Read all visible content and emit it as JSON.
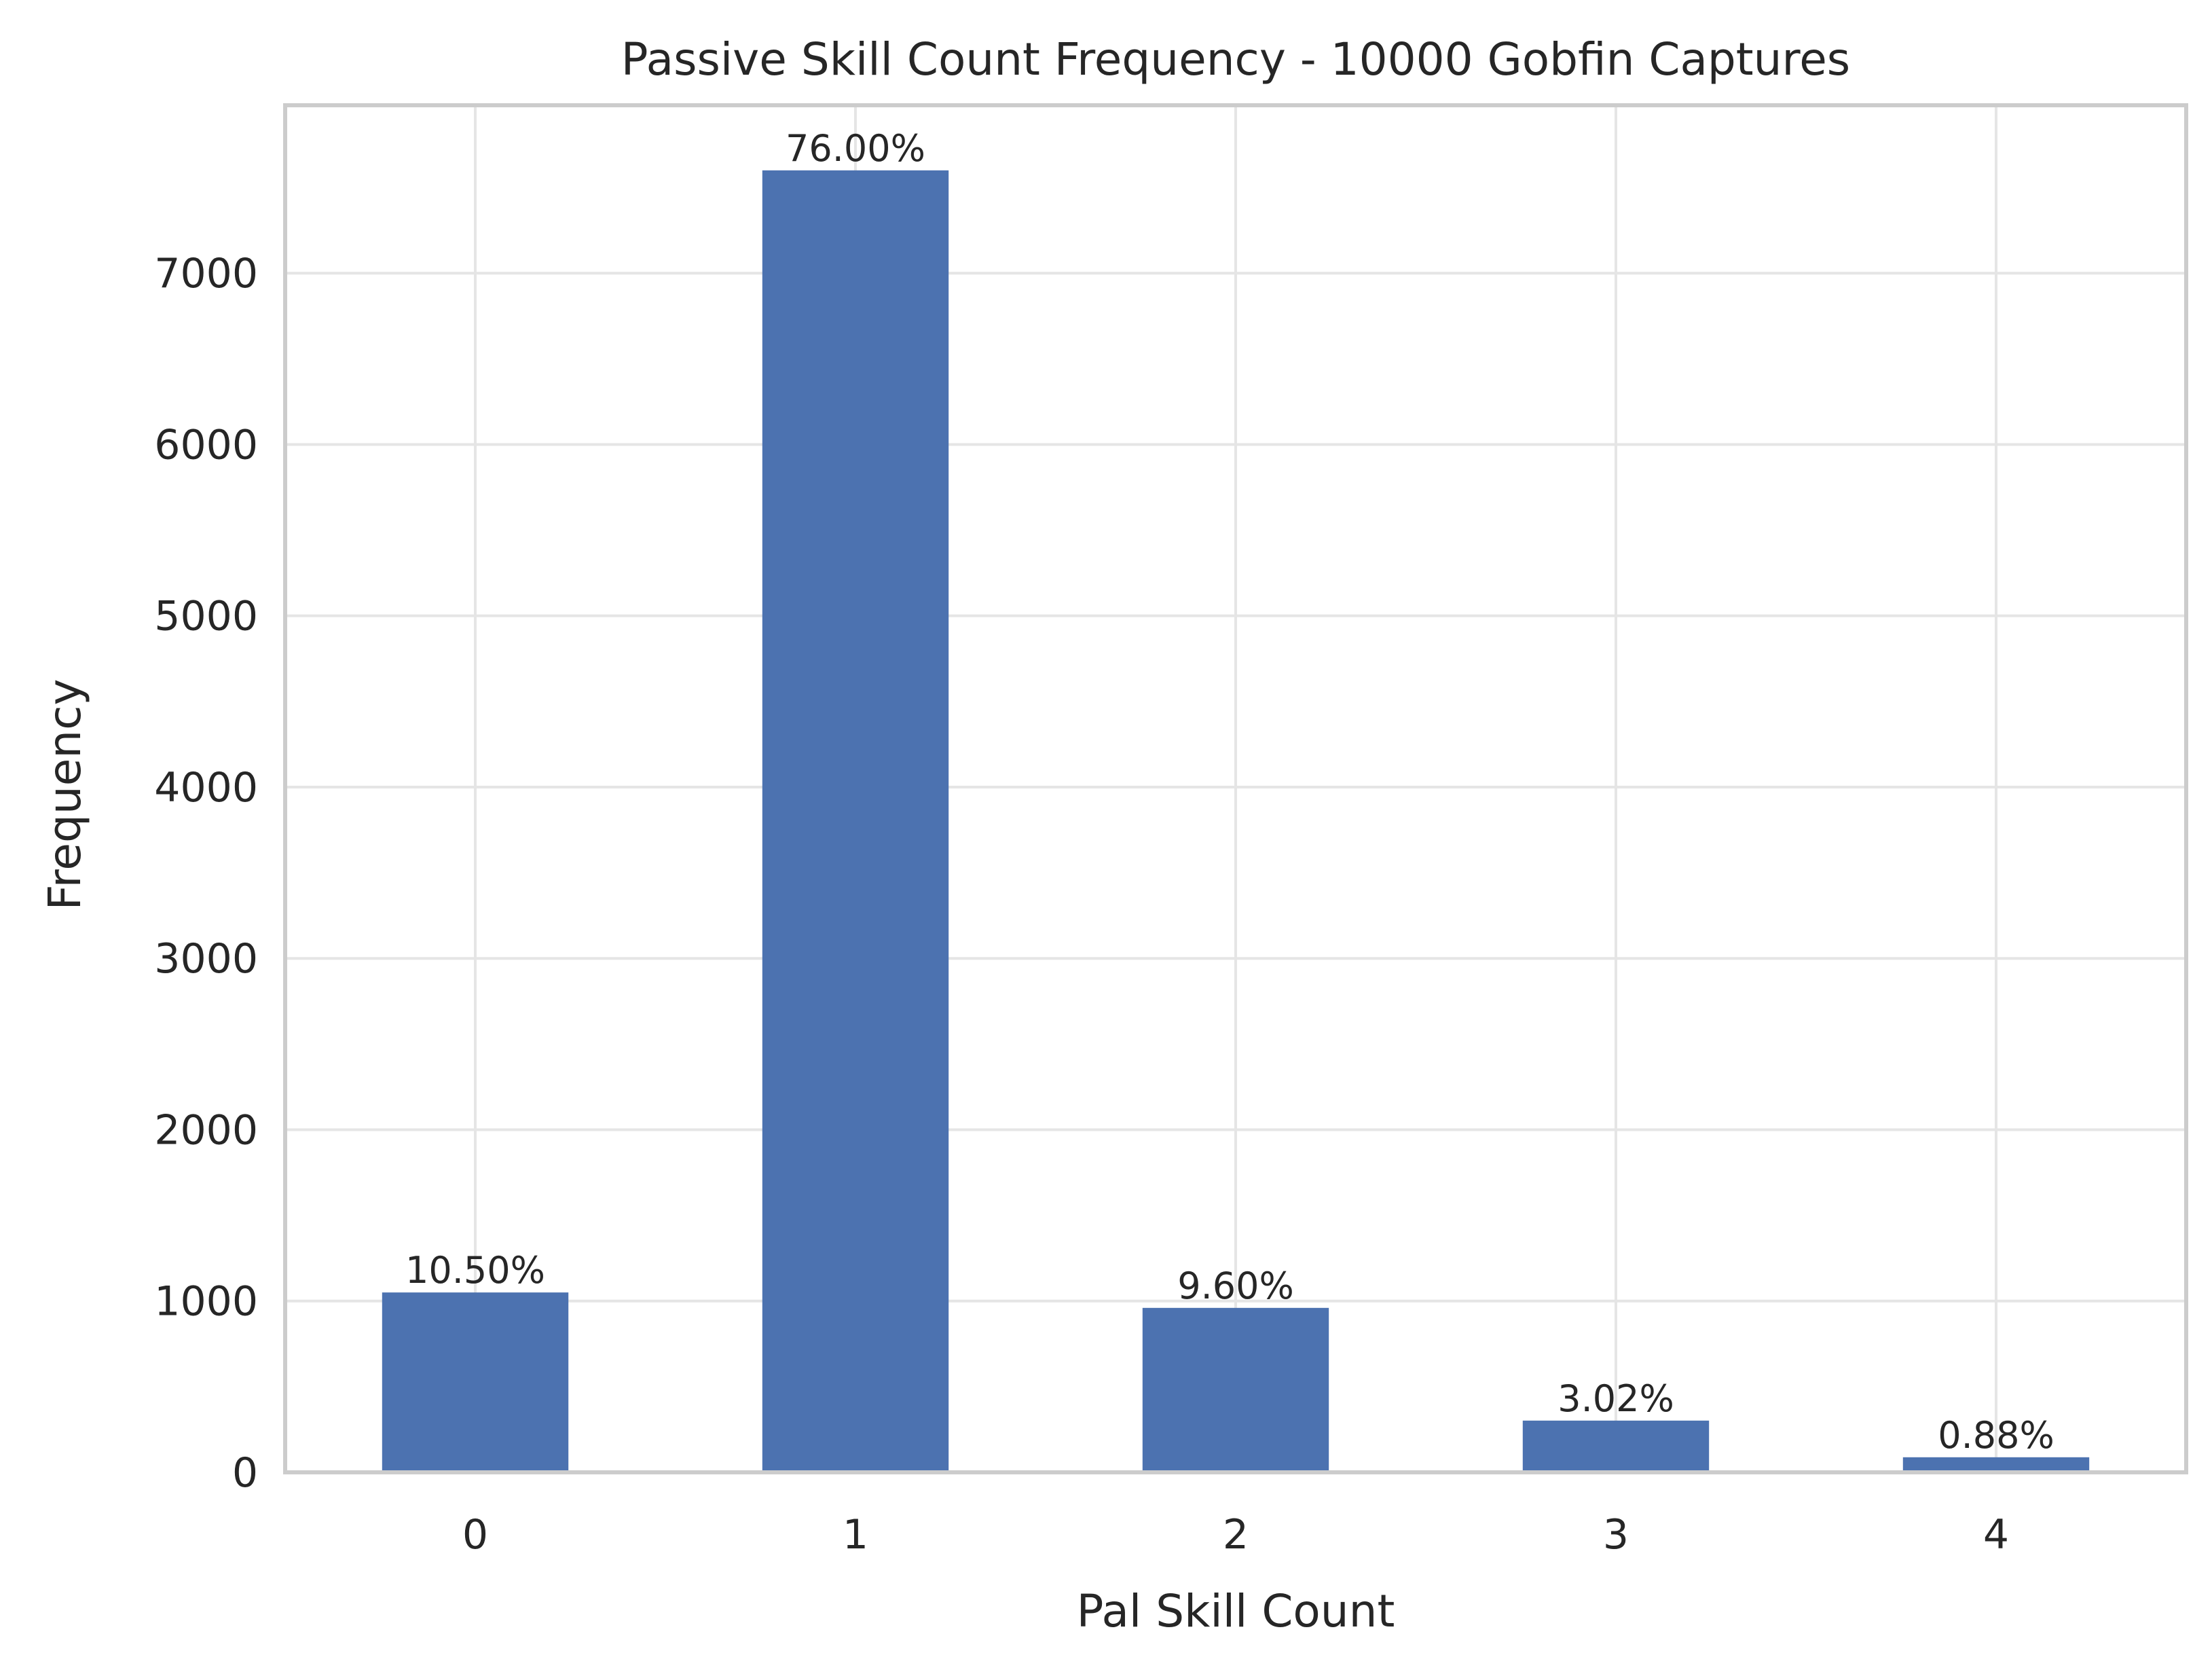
{
  "chart_data": {
    "type": "bar",
    "title": "Passive Skill Count Frequency - 10000 Gobfin Captures",
    "xlabel": "Pal Skill Count",
    "ylabel": "Frequency",
    "categories": [
      "0",
      "1",
      "2",
      "3",
      "4"
    ],
    "values": [
      1050,
      7600,
      960,
      302,
      88
    ],
    "labels": [
      "10.50%",
      "76.00%",
      "9.60%",
      "3.02%",
      "0.88%"
    ],
    "ylim": [
      0,
      7980
    ],
    "yticks": [
      0,
      1000,
      2000,
      3000,
      4000,
      5000,
      6000,
      7000
    ],
    "grid": true,
    "legend": "none",
    "bar_color": "#4c72b0",
    "grid_color": "#e5e5e5",
    "frame_color": "#cccccc",
    "text_color": "#262626"
  }
}
